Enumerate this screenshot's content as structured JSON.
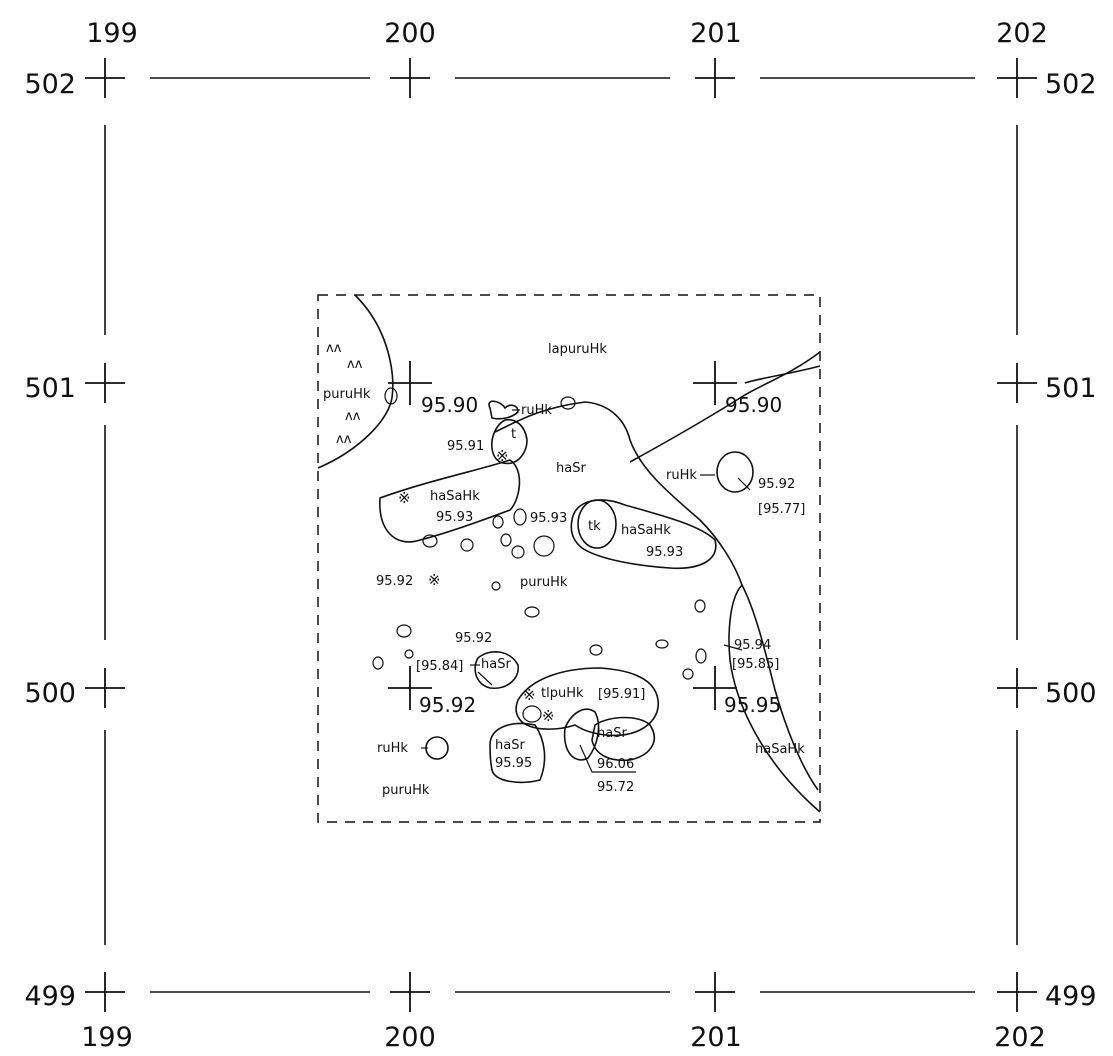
{
  "grid": {
    "x_labels": [
      "199",
      "200",
      "201",
      "202"
    ],
    "y_labels": [
      "502",
      "501",
      "500",
      "499"
    ]
  },
  "elevations": {
    "e1": "95.90",
    "e2": "95.90",
    "e3": "95.91",
    "e4": "95.92",
    "e5": "[95.77]",
    "e6": "95.93",
    "e7": "95.93",
    "e8": "95.93",
    "e9": "95.92",
    "e10": "95.92",
    "e11": "[95.84]",
    "e12": "95.94",
    "e13": "[95.85]",
    "e14": "95.92",
    "e15": "[95.91]",
    "e16": "95.95",
    "e17": "95.95",
    "e18": "96.06",
    "e19": "95.72"
  },
  "soil_labels": {
    "lapuruHk": "lapuruHk",
    "puruHk_nw": "puruHk",
    "ruHk_top": "ruHk",
    "t_small": "t",
    "haSr_center": "haSr",
    "ruHk_east": "ruHk",
    "haSaHk_west": "haSaHk",
    "tk": "tk",
    "haSaHk_center": "haSaHk",
    "puruHk_mid": "puruHk",
    "haSr_small": "haSr",
    "tlpuHk": "tlpuHk",
    "haSr_south": "haSr",
    "haSr_se": "haSr",
    "ruHk_sw": "ruHk",
    "puruHk_sw": "puruHk",
    "haSaHk_east": "haSaHk"
  },
  "symbols": {
    "wave": "ʌʌ",
    "burnt": "※"
  }
}
